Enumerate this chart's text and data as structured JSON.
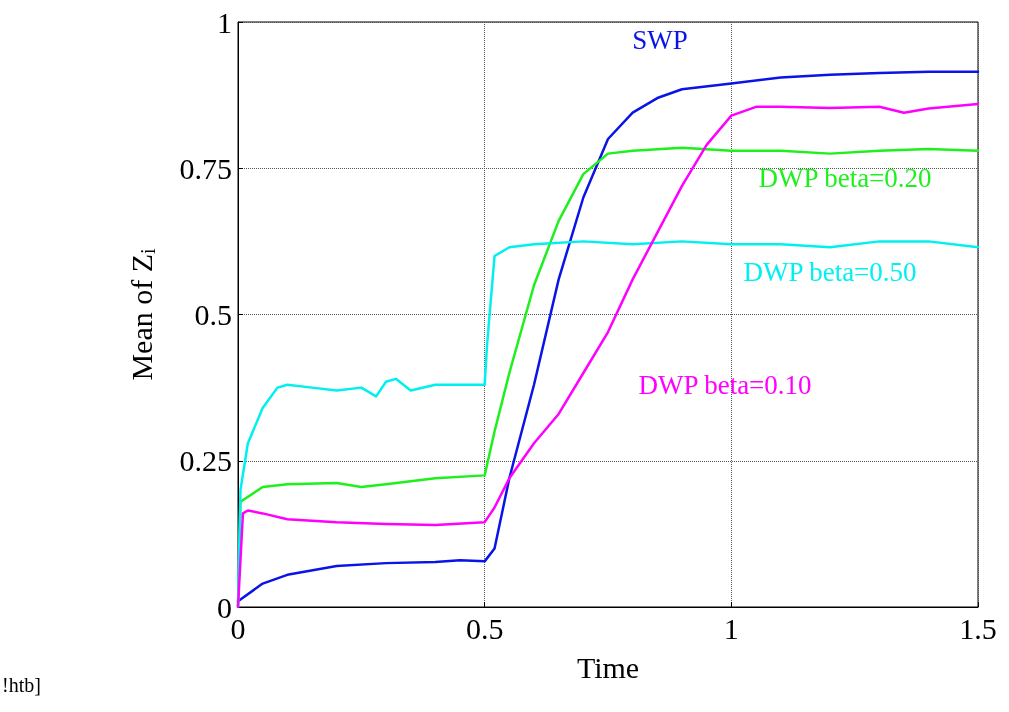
{
  "chart_data": {
    "type": "line",
    "xlabel": "Time",
    "ylabel": "Mean of Z$_{i}$",
    "xlim": [
      0,
      1.5
    ],
    "ylim": [
      0,
      1
    ],
    "xticks": [
      0,
      0.5,
      1,
      1.5
    ],
    "yticks": [
      0,
      0.25,
      0.5,
      0.75,
      1
    ],
    "grid": true,
    "legend": false,
    "marker": "none",
    "line_style": "solid",
    "series": [
      {
        "name": "SWP",
        "color": "#0a14e6",
        "x": [
          0,
          0.05,
          0.1,
          0.2,
          0.3,
          0.4,
          0.45,
          0.5,
          0.52,
          0.55,
          0.6,
          0.65,
          0.7,
          0.75,
          0.8,
          0.85,
          0.9,
          1.0,
          1.1,
          1.2,
          1.3,
          1.4,
          1.5
        ],
        "values": [
          0.01,
          0.04,
          0.055,
          0.07,
          0.075,
          0.077,
          0.08,
          0.078,
          0.1,
          0.22,
          0.38,
          0.56,
          0.7,
          0.8,
          0.845,
          0.87,
          0.885,
          0.895,
          0.905,
          0.91,
          0.913,
          0.915,
          0.915
        ]
      },
      {
        "name": "DWP beta=0.20",
        "color": "#1ef01e",
        "x": [
          0,
          0.005,
          0.05,
          0.1,
          0.2,
          0.25,
          0.3,
          0.4,
          0.5,
          0.52,
          0.55,
          0.6,
          0.65,
          0.7,
          0.75,
          0.8,
          0.9,
          1.0,
          1.1,
          1.2,
          1.3,
          1.4,
          1.5
        ],
        "values": [
          0,
          0.18,
          0.205,
          0.21,
          0.212,
          0.205,
          0.21,
          0.22,
          0.225,
          0.3,
          0.4,
          0.55,
          0.66,
          0.74,
          0.775,
          0.78,
          0.785,
          0.78,
          0.78,
          0.775,
          0.78,
          0.783,
          0.78
        ]
      },
      {
        "name": "DWP beta=0.50",
        "color": "#00f0f0",
        "x": [
          0,
          0.005,
          0.02,
          0.05,
          0.08,
          0.1,
          0.15,
          0.2,
          0.25,
          0.28,
          0.3,
          0.32,
          0.35,
          0.4,
          0.45,
          0.5,
          0.505,
          0.52,
          0.55,
          0.6,
          0.7,
          0.8,
          0.9,
          1.0,
          1.1,
          1.2,
          1.3,
          1.4,
          1.5
        ],
        "values": [
          0,
          0.2,
          0.28,
          0.34,
          0.375,
          0.38,
          0.375,
          0.37,
          0.375,
          0.36,
          0.385,
          0.39,
          0.37,
          0.38,
          0.38,
          0.38,
          0.45,
          0.6,
          0.615,
          0.62,
          0.625,
          0.62,
          0.625,
          0.62,
          0.62,
          0.615,
          0.625,
          0.625,
          0.615
        ]
      },
      {
        "name": "DWP beta=0.10",
        "color": "#ff00ff",
        "x": [
          0,
          0.01,
          0.02,
          0.05,
          0.1,
          0.2,
          0.3,
          0.4,
          0.5,
          0.52,
          0.55,
          0.6,
          0.65,
          0.7,
          0.75,
          0.8,
          0.85,
          0.9,
          0.95,
          1.0,
          1.05,
          1.1,
          1.2,
          1.3,
          1.35,
          1.4,
          1.5
        ],
        "values": [
          0,
          0.16,
          0.165,
          0.16,
          0.15,
          0.145,
          0.142,
          0.14,
          0.145,
          0.17,
          0.22,
          0.28,
          0.33,
          0.4,
          0.47,
          0.56,
          0.64,
          0.72,
          0.79,
          0.84,
          0.855,
          0.855,
          0.853,
          0.855,
          0.845,
          0.852,
          0.86
        ]
      }
    ],
    "annotations": [
      "!htb]"
    ]
  }
}
